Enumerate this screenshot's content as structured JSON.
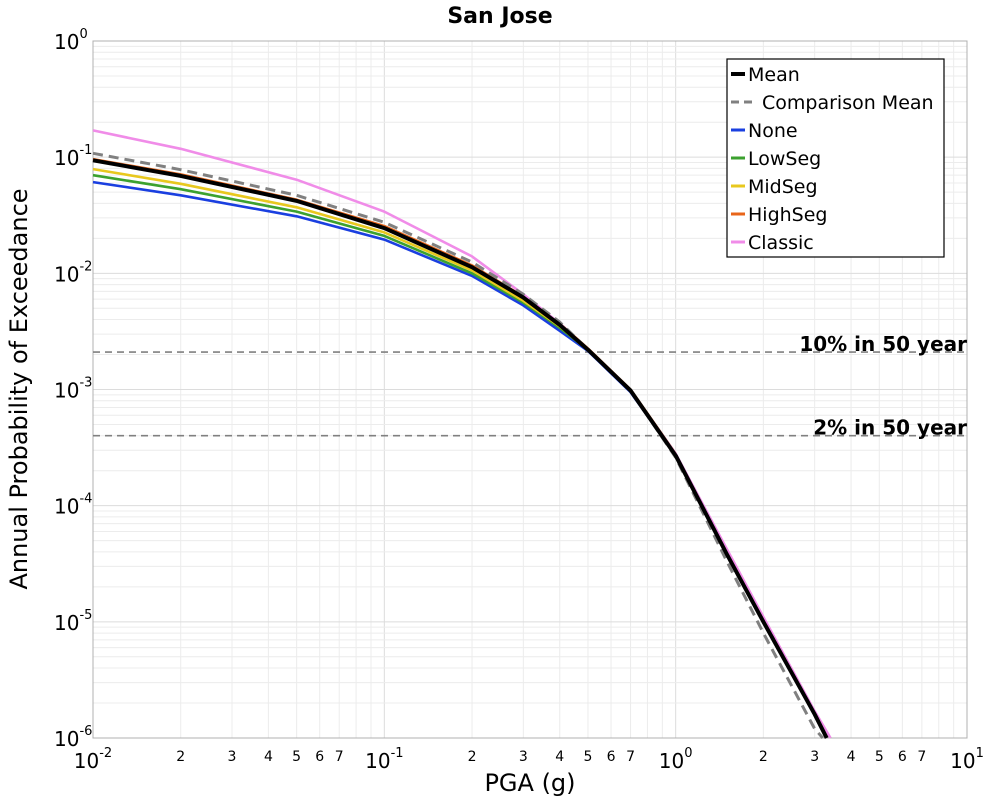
{
  "chart_data": {
    "type": "line",
    "title": "San Jose",
    "xlabel": "PGA (g)",
    "ylabel": "Annual Probability of Exceedance",
    "x_scale": "log",
    "y_scale": "log",
    "xlim": [
      0.01,
      10
    ],
    "ylim": [
      1e-06,
      1
    ],
    "grid": true,
    "legend_position": "top-right",
    "x_ticks": [
      {
        "base": "10",
        "exp": "-2"
      },
      {
        "base": "10",
        "exp": "-1"
      },
      {
        "base": "10",
        "exp": "0"
      },
      {
        "base": "10",
        "exp": "1"
      }
    ],
    "y_ticks": [
      {
        "base": "10",
        "exp": "0"
      },
      {
        "base": "10",
        "exp": "-1"
      },
      {
        "base": "10",
        "exp": "-2"
      },
      {
        "base": "10",
        "exp": "-3"
      },
      {
        "base": "10",
        "exp": "-4"
      },
      {
        "base": "10",
        "exp": "-5"
      },
      {
        "base": "10",
        "exp": "-6"
      }
    ],
    "x_minor_tick_labels": [
      "2",
      "3",
      "4",
      "5",
      "6",
      "7"
    ],
    "reference_lines": [
      {
        "label": "10% in 50 year",
        "y": 0.0021,
        "color": "#808080"
      },
      {
        "label": "2% in 50 year",
        "y": 0.0004,
        "color": "#808080"
      }
    ],
    "series": [
      {
        "name": "None",
        "color": "#1a3fe0",
        "dash": "solid",
        "x": [
          0.01,
          0.02,
          0.05,
          0.1,
          0.2,
          0.3,
          0.4,
          0.5,
          0.7,
          1.0
        ],
        "y": [
          0.061,
          0.047,
          0.031,
          0.0195,
          0.0095,
          0.0053,
          0.0032,
          0.00215,
          0.00095,
          0.00027
        ]
      },
      {
        "name": "LowSeg",
        "color": "#3ca12f",
        "dash": "solid",
        "x": [
          0.01,
          0.02,
          0.05,
          0.1,
          0.2,
          0.3,
          0.4,
          0.5,
          0.7,
          1.0
        ],
        "y": [
          0.07,
          0.053,
          0.034,
          0.021,
          0.01,
          0.0056,
          0.0034,
          0.0022,
          0.00097,
          0.00027
        ]
      },
      {
        "name": "MidSeg",
        "color": "#e8c81e",
        "dash": "solid",
        "x": [
          0.01,
          0.02,
          0.05,
          0.1,
          0.2,
          0.3,
          0.4,
          0.5,
          0.7,
          1.0
        ],
        "y": [
          0.079,
          0.059,
          0.037,
          0.0225,
          0.0106,
          0.0058,
          0.0035,
          0.0022,
          0.00098,
          0.00027
        ]
      },
      {
        "name": "HighSeg",
        "color": "#e8651a",
        "dash": "solid",
        "x": [
          0.01,
          0.02,
          0.05,
          0.1,
          0.2,
          0.3,
          0.4,
          0.5,
          0.7,
          1.0
        ],
        "y": [
          0.096,
          0.071,
          0.043,
          0.0255,
          0.0117,
          0.0063,
          0.0037,
          0.00225,
          0.001,
          0.00028
        ]
      },
      {
        "name": "Classic",
        "color": "#f08ce8",
        "dash": "solid",
        "x": [
          0.01,
          0.02,
          0.05,
          0.1,
          0.2,
          0.3,
          0.4,
          0.5,
          0.7,
          1.0,
          1.5,
          2.0,
          3.0,
          3.4
        ],
        "y": [
          0.17,
          0.118,
          0.064,
          0.034,
          0.014,
          0.0066,
          0.0037,
          0.0022,
          0.00098,
          0.00028,
          4.2e-05,
          1.1e-05,
          1.7e-06,
          1e-06
        ]
      },
      {
        "name": "Comparison Mean",
        "color": "#808080",
        "dash": "dashed",
        "x": [
          0.01,
          0.02,
          0.05,
          0.1,
          0.2,
          0.3,
          0.4,
          0.5,
          0.7,
          1.0,
          1.5,
          2.0,
          3.0,
          3.2
        ],
        "y": [
          0.108,
          0.078,
          0.047,
          0.0275,
          0.0125,
          0.0066,
          0.0038,
          0.0022,
          0.00098,
          0.00026,
          3.3e-05,
          8e-06,
          1.2e-06,
          1e-06
        ]
      },
      {
        "name": "Mean",
        "color": "#000000",
        "dash": "solid",
        "x": [
          0.01,
          0.02,
          0.05,
          0.1,
          0.2,
          0.3,
          0.4,
          0.5,
          0.7,
          1.0,
          1.5,
          2.0,
          3.0,
          3.3
        ],
        "y": [
          0.094,
          0.069,
          0.042,
          0.0245,
          0.0113,
          0.0062,
          0.0036,
          0.0022,
          0.00098,
          0.00027,
          3.8e-05,
          1e-05,
          1.6e-06,
          1e-06
        ]
      }
    ],
    "legend_order": [
      "Mean",
      "Comparison Mean",
      "None",
      "LowSeg",
      "MidSeg",
      "HighSeg",
      "Classic"
    ]
  }
}
